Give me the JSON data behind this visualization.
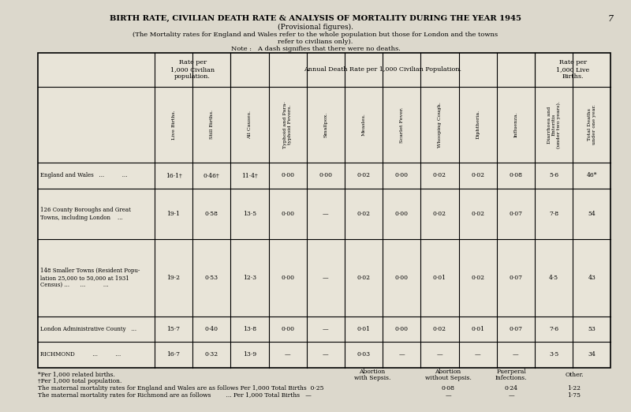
{
  "title": "BIRTH RATE, CIVILIAN DEATH RATE & ANALYSIS OF MORTALITY DURING THE YEAR 1945",
  "subtitle": "(Provisional figures).",
  "note1": "(The Mortality rates for England and Wales refer to the whole population but those for London and the towns",
  "note2": "refer to civilians only).",
  "note3": "Note :   A dash signifies that there were no deaths.",
  "bg_color": "#dcd8cc",
  "table_bg": "#e8e4d8",
  "header_groups": [
    {
      "text": "Rate per\n1,000 Civilian\npopulation."
    },
    {
      "text": "Annual Death Rate per 1,000 Civilian Population."
    },
    {
      "text": "Rate per\n1,000 Live\nBirths."
    }
  ],
  "col_headers": [
    "Live Births.",
    "Still Births.",
    "All Causes.",
    "Typhoid and Para-\ntyphoid Fevers.",
    "Smallpox.",
    "Measles.",
    "Scarlet Fever.",
    "Whooping Cough.",
    "Diphtheria.",
    "Influenza.",
    "Diarrhoea and\nEnteritis\n(under two years).",
    "Total Deaths\nunder one year."
  ],
  "row_labels": [
    "England and Wales   ...          ...",
    "126 County Boroughs and Great\nTowns, including London    ...",
    "148 Smaller Towns (Resident Popu-\nlation 25,000 to 50,000 at 1931\nCensus) ...      ...          ...",
    "London Administrative County   ...",
    "RICHMOND          ...          ..."
  ],
  "rows": [
    [
      "16·1†",
      "0·46†",
      "11·4†",
      "0·00",
      "0·00",
      "0·02",
      "0·00",
      "0·02",
      "0·02",
      "0·08",
      "5·6",
      "46*"
    ],
    [
      "19·1",
      "0·58",
      "13·5",
      "0·00",
      "—",
      "0·02",
      "0·00",
      "0·02",
      "0·02",
      "0·07",
      "7·8",
      "54"
    ],
    [
      "19·2",
      "0·53",
      "12·3",
      "0·00",
      "—",
      "0·02",
      "0·00",
      "0·01",
      "0·02",
      "0·07",
      "4·5",
      "43"
    ],
    [
      "15·7",
      "0·40",
      "13·8",
      "0·00",
      "—",
      "0·01",
      "0·00",
      "0·02",
      "0·01",
      "0·07",
      "7·6",
      "53"
    ],
    [
      "16·7",
      "0·32",
      "13·9",
      "—",
      "—",
      "0·03",
      "—",
      "—",
      "—",
      "—",
      "3·5",
      "34"
    ]
  ],
  "page_num": "7"
}
